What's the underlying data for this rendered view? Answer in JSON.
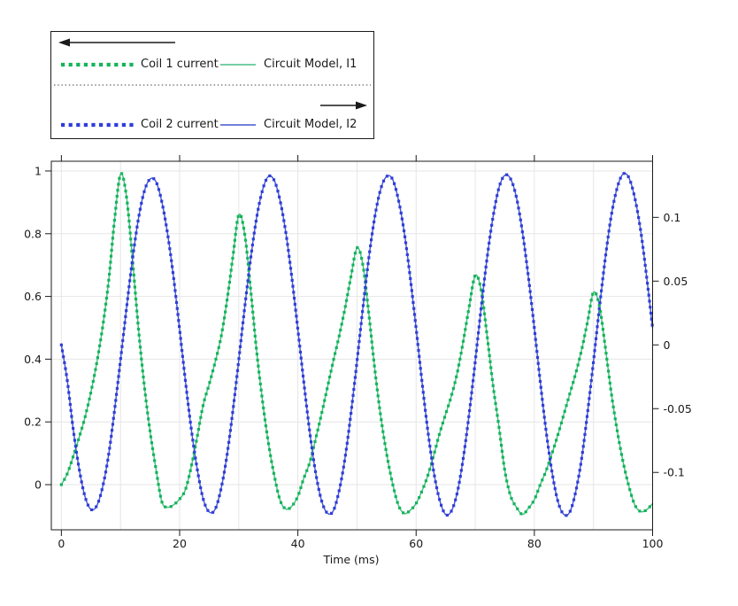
{
  "legend": {
    "left_axis_arrow": "left",
    "right_axis_arrow": "right",
    "entries": [
      {
        "label": "Coil 1 current",
        "style": "dotted",
        "color": "#13b459"
      },
      {
        "label": "Circuit Model, I1",
        "style": "solid",
        "color": "#49bd85"
      },
      {
        "label": "Coil 2 current",
        "style": "dotted",
        "color": "#2e3ed8"
      },
      {
        "label": "Circuit Model, I2",
        "style": "solid",
        "color": "#4656cf"
      }
    ]
  },
  "colors": {
    "background": "#ffffff",
    "grid": "#e6e6e6",
    "axis": "#1a1a1a",
    "text": "#1a1a1a"
  },
  "chart_data": {
    "type": "line",
    "x_label": "Time (ms)",
    "x_range": [
      -1.7,
      100
    ],
    "x_ticks": [
      0,
      20,
      40,
      60,
      80,
      100
    ],
    "x_tick_labels": [
      "0",
      "20",
      "40",
      "60",
      "80",
      "100"
    ],
    "x_grid_step": 10,
    "left_axis": {
      "range": [
        -0.144,
        1.031
      ],
      "ticks": [
        0,
        0.2,
        0.4,
        0.6,
        0.8,
        1
      ],
      "tick_labels": [
        "0",
        "0.2",
        "0.4",
        "0.6",
        "0.8",
        "1"
      ]
    },
    "right_axis": {
      "range": [
        -0.145,
        0.144
      ],
      "ticks": [
        -0.1,
        -0.05,
        0,
        0.05,
        0.1
      ],
      "tick_labels": [
        "-0.1",
        "-0.05",
        "0",
        "0.05",
        "0.1"
      ]
    },
    "series": [
      {
        "name": "Coil 1 current",
        "axis": "left",
        "style": "dotted",
        "marker": "square",
        "color": "#13b459",
        "x_start": 0,
        "x_step": 1,
        "values": [
          0.0,
          0.035,
          0.09,
          0.15,
          0.215,
          0.295,
          0.39,
          0.505,
          0.65,
          0.845,
          0.99,
          0.92,
          0.725,
          0.505,
          0.32,
          0.17,
          0.05,
          -0.055,
          -0.072,
          -0.064,
          -0.046,
          -0.015,
          0.06,
          0.155,
          0.255,
          0.32,
          0.39,
          0.47,
          0.585,
          0.725,
          0.86,
          0.8,
          0.625,
          0.43,
          0.27,
          0.135,
          0.03,
          -0.05,
          -0.078,
          -0.068,
          -0.037,
          0.02,
          0.07,
          0.145,
          0.225,
          0.31,
          0.395,
          0.475,
          0.565,
          0.665,
          0.755,
          0.7,
          0.545,
          0.37,
          0.22,
          0.1,
          0.005,
          -0.065,
          -0.092,
          -0.082,
          -0.06,
          -0.02,
          0.03,
          0.095,
          0.165,
          0.225,
          0.285,
          0.36,
          0.46,
          0.57,
          0.667,
          0.62,
          0.476,
          0.318,
          0.186,
          0.045,
          -0.037,
          -0.073,
          -0.095,
          -0.075,
          -0.048,
          0.0,
          0.045,
          0.1,
          0.16,
          0.225,
          0.29,
          0.355,
          0.43,
          0.52,
          0.613,
          0.57,
          0.438,
          0.294,
          0.173,
          0.073,
          -0.006,
          -0.065,
          -0.086,
          -0.08,
          -0.06
        ]
      },
      {
        "name": "Circuit Model, I1",
        "axis": "left",
        "style": "solid",
        "color": "#49bd85",
        "same_data_as": 0
      },
      {
        "name": "Coil 2 current",
        "axis": "right",
        "style": "dotted",
        "marker": "square",
        "color": "#2e3ed8",
        "x_start": 0,
        "x_step": 1,
        "values": [
          0.0,
          -0.028,
          -0.066,
          -0.097,
          -0.119,
          -0.129,
          -0.126,
          -0.111,
          -0.086,
          -0.051,
          -0.012,
          0.028,
          0.066,
          0.098,
          0.12,
          0.13,
          0.128,
          0.112,
          0.086,
          0.052,
          0.012,
          -0.029,
          -0.067,
          -0.098,
          -0.121,
          -0.131,
          -0.129,
          -0.113,
          -0.087,
          -0.052,
          -0.012,
          0.029,
          0.067,
          0.099,
          0.121,
          0.132,
          0.129,
          0.113,
          0.087,
          0.052,
          0.012,
          -0.029,
          -0.068,
          -0.1,
          -0.122,
          -0.132,
          -0.13,
          -0.114,
          -0.088,
          -0.053,
          -0.013,
          0.029,
          0.068,
          0.1,
          0.122,
          0.132,
          0.13,
          0.114,
          0.088,
          0.053,
          0.013,
          -0.029,
          -0.068,
          -0.1,
          -0.122,
          -0.133,
          -0.13,
          -0.115,
          -0.088,
          -0.053,
          -0.013,
          0.029,
          0.068,
          0.1,
          0.123,
          0.133,
          0.13,
          0.115,
          0.088,
          0.053,
          0.013,
          -0.029,
          -0.068,
          -0.1,
          -0.123,
          -0.133,
          -0.131,
          -0.115,
          -0.089,
          -0.053,
          -0.013,
          0.029,
          0.068,
          0.101,
          0.123,
          0.134,
          0.131,
          0.115,
          0.089,
          0.053,
          0.013
        ]
      },
      {
        "name": "Circuit Model, I2",
        "axis": "right",
        "style": "solid",
        "color": "#4656cf",
        "same_data_as": 2
      }
    ]
  }
}
